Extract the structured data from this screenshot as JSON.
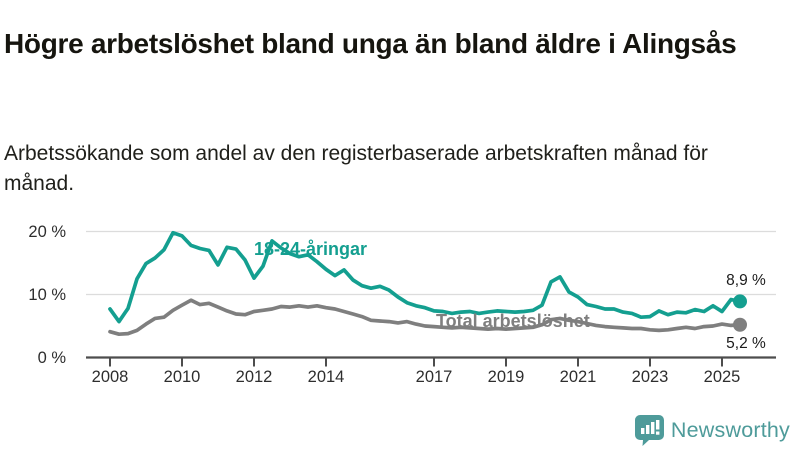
{
  "header": {
    "title": "Högre arbetslöshet bland unga än bland äldre i Alingsås",
    "subtitle": "Arbetssökande som andel av den registerbaserade arbetskraften månad för månad."
  },
  "footer": {
    "brand": "Newsworthy",
    "brand_color": "#4e9b9a",
    "logo_icon": "speech-bubble-bar-chart-exclamation"
  },
  "colors": {
    "youth_line": "#149f90",
    "total_line": "#7f7f7f",
    "axis": "#4d4d4d",
    "grid": "#dcdcdc",
    "tick_text": "#2e2e2e",
    "end_label_text": "#1b1b1b"
  },
  "chart_data": {
    "type": "line",
    "unit": "%",
    "grid": "horizontal",
    "ylim": [
      0,
      21
    ],
    "x": [
      2008,
      2008.25,
      2008.5,
      2008.75,
      2009,
      2009.25,
      2009.5,
      2009.75,
      2010,
      2010.25,
      2010.5,
      2010.75,
      2011,
      2011.25,
      2011.5,
      2011.75,
      2012,
      2012.25,
      2012.5,
      2012.75,
      2013,
      2013.25,
      2013.5,
      2013.75,
      2014,
      2014.25,
      2014.5,
      2014.75,
      2015,
      2015.25,
      2015.5,
      2015.75,
      2016,
      2016.25,
      2016.5,
      2016.75,
      2017,
      2017.25,
      2017.5,
      2017.75,
      2018,
      2018.25,
      2018.5,
      2018.75,
      2019,
      2019.25,
      2019.5,
      2019.75,
      2020,
      2020.25,
      2020.5,
      2020.75,
      2021,
      2021.25,
      2021.5,
      2021.75,
      2022,
      2022.25,
      2022.5,
      2022.75,
      2023,
      2023.25,
      2023.5,
      2023.75,
      2024,
      2024.25,
      2024.5,
      2024.75,
      2025,
      2025.25,
      2025.5
    ],
    "series": [
      {
        "name": "18-24-åringar",
        "color": "#149f90",
        "end_label": "8,9 %",
        "end_value": 8.9,
        "values": [
          7.7,
          5.7,
          7.8,
          12.5,
          14.9,
          15.8,
          17.1,
          19.8,
          19.3,
          17.8,
          17.3,
          17.0,
          14.7,
          17.5,
          17.2,
          15.5,
          12.6,
          14.5,
          18.5,
          17.4,
          16.5,
          16.0,
          16.3,
          15.2,
          14.0,
          13.0,
          13.9,
          12.3,
          11.4,
          11.0,
          11.3,
          10.7,
          9.6,
          8.7,
          8.2,
          7.9,
          7.4,
          7.3,
          7.0,
          7.2,
          7.3,
          7.0,
          7.2,
          7.4,
          7.3,
          7.2,
          7.3,
          7.5,
          8.3,
          12.0,
          12.8,
          10.4,
          9.6,
          8.4,
          8.1,
          7.7,
          7.7,
          7.2,
          7.0,
          6.4,
          6.5,
          7.4,
          6.8,
          7.2,
          7.1,
          7.6,
          7.3,
          8.2,
          7.3,
          9.2,
          8.9
        ]
      },
      {
        "name": "Total arbetslöshet",
        "color": "#7f7f7f",
        "end_label": "5,2 %",
        "end_value": 5.2,
        "values": [
          4.1,
          3.7,
          3.8,
          4.3,
          5.3,
          6.2,
          6.4,
          7.5,
          8.3,
          9.1,
          8.4,
          8.6,
          8.0,
          7.4,
          6.9,
          6.8,
          7.3,
          7.5,
          7.7,
          8.1,
          8.0,
          8.2,
          8.0,
          8.2,
          7.9,
          7.7,
          7.3,
          6.9,
          6.5,
          5.9,
          5.8,
          5.7,
          5.5,
          5.7,
          5.3,
          5.0,
          4.9,
          4.8,
          4.7,
          4.8,
          4.7,
          4.6,
          4.5,
          4.6,
          4.5,
          4.6,
          4.7,
          4.8,
          5.2,
          6.0,
          6.2,
          5.9,
          5.7,
          5.4,
          5.1,
          4.9,
          4.8,
          4.7,
          4.6,
          4.6,
          4.4,
          4.3,
          4.4,
          4.6,
          4.8,
          4.6,
          4.9,
          5.0,
          5.3,
          5.1,
          5.2
        ]
      }
    ],
    "y_ticks": [
      {
        "value": 0,
        "label": "0 %"
      },
      {
        "value": 10,
        "label": "10 %"
      },
      {
        "value": 20,
        "label": "20 %"
      }
    ],
    "x_ticks": [
      {
        "year": 2008,
        "label": "2008"
      },
      {
        "year": 2010,
        "label": "2010"
      },
      {
        "year": 2012,
        "label": "2012"
      },
      {
        "year": 2014,
        "label": "2014"
      },
      {
        "year": 2017,
        "label": "2017"
      },
      {
        "year": 2019,
        "label": "2019"
      },
      {
        "year": 2021,
        "label": "2021"
      },
      {
        "year": 2023,
        "label": "2023"
      },
      {
        "year": 2025,
        "label": "2025"
      }
    ]
  }
}
